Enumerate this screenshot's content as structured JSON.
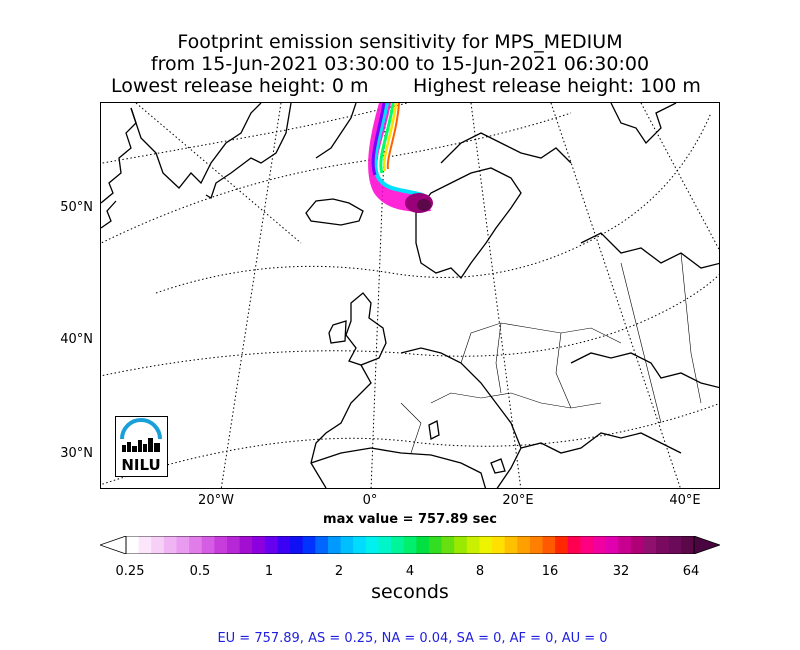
{
  "title": {
    "line1": "Footprint emission sensitivity for MPS_MEDIUM",
    "line2": "from 15-Jun-2021 03:30:00 to 15-Jun-2021 06:30:00",
    "lowest": "Lowest release height: 0 m",
    "highest": "Highest release height: 100 m"
  },
  "map": {
    "lat_labels": [
      "50°N",
      "40°N",
      "30°N"
    ],
    "lon_labels": [
      "20°W",
      "0°",
      "20°E",
      "40°E"
    ],
    "logo_text": "NILU",
    "logo_color": "#1aa0d8"
  },
  "max_value_label": "max value = 757.89 sec",
  "colorbar": {
    "tick_labels": [
      "0.25",
      "0.5",
      "1",
      "2",
      "4",
      "8",
      "16",
      "32",
      "64"
    ],
    "units": "seconds",
    "colors": [
      "#ffffff",
      "#fbe6fb",
      "#f7d0f7",
      "#f0b3f3",
      "#e99bf0",
      "#e07de9",
      "#d55de3",
      "#c63ddc",
      "#b628d6",
      "#a20fd0",
      "#8c00e0",
      "#6600ee",
      "#3c00f5",
      "#1010f5",
      "#0033ff",
      "#0066ff",
      "#0099ff",
      "#00bfff",
      "#00dcff",
      "#00f0f0",
      "#00f5c8",
      "#00f59a",
      "#00f06e",
      "#00e040",
      "#33dd22",
      "#66e010",
      "#99ea00",
      "#c8f000",
      "#eef400",
      "#ffe000",
      "#ffc000",
      "#ffa000",
      "#ff8000",
      "#ff5a00",
      "#ff2800",
      "#ff0050",
      "#ff0080",
      "#f000a0",
      "#e000b0",
      "#c80090",
      "#b00078",
      "#901070",
      "#7a0a60",
      "#6a0a58",
      "#5a0848"
    ]
  },
  "stats": "EU = 757.89,  AS = 0.25,  NA = 0.04,  SA = 0,  AF = 0,  AU = 0"
}
